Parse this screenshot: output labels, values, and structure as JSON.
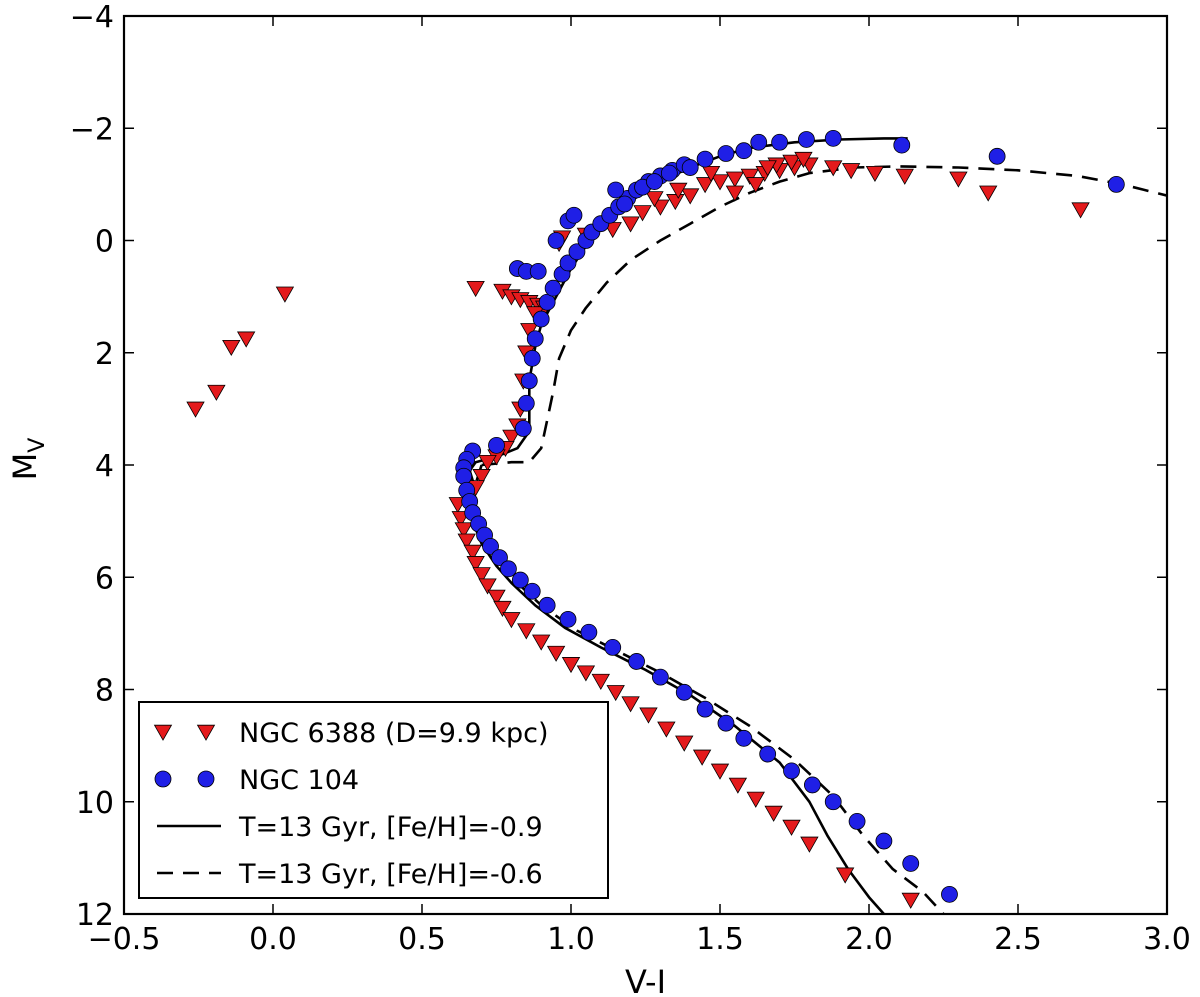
{
  "chart_data": {
    "type": "scatter",
    "title": "",
    "xlabel": "V-I",
    "ylabel_main": "M",
    "ylabel_sub": "V",
    "xlim": [
      -0.5,
      3.0
    ],
    "ylim": [
      12,
      -4
    ],
    "y_inverted": true,
    "xticks": [
      -0.5,
      0.0,
      0.5,
      1.0,
      1.5,
      2.0,
      2.5,
      3.0
    ],
    "xtick_labels": [
      "−0.5",
      "0.0",
      "0.5",
      "1.0",
      "1.5",
      "2.0",
      "2.5",
      "3.0"
    ],
    "yticks": [
      -4,
      -2,
      0,
      2,
      4,
      6,
      8,
      10,
      12
    ],
    "ytick_labels": [
      "−4",
      "−2",
      "0",
      "2",
      "4",
      "6",
      "8",
      "10",
      "12"
    ],
    "grid": false,
    "legend_position": "bottom-left",
    "series": [
      {
        "name": "NGC 6388 (D=9.9 kpc)",
        "kind": "scatter",
        "marker": "triangle-down",
        "color": "#e41a1c",
        "points": [
          [
            -0.26,
            3.0
          ],
          [
            -0.19,
            2.7
          ],
          [
            -0.14,
            1.9
          ],
          [
            -0.09,
            1.75
          ],
          [
            0.04,
            0.95
          ],
          [
            0.68,
            0.85
          ],
          [
            0.77,
            0.9
          ],
          [
            0.8,
            1.0
          ],
          [
            0.83,
            1.05
          ],
          [
            0.86,
            1.1
          ],
          [
            0.89,
            1.15
          ],
          [
            0.91,
            1.2
          ],
          [
            0.88,
            1.3
          ],
          [
            0.86,
            1.6
          ],
          [
            0.85,
            2.0
          ],
          [
            0.84,
            2.5
          ],
          [
            0.83,
            3.0
          ],
          [
            0.82,
            3.3
          ],
          [
            0.8,
            3.5
          ],
          [
            0.78,
            3.7
          ],
          [
            0.75,
            3.85
          ],
          [
            0.72,
            3.95
          ],
          [
            0.7,
            4.2
          ],
          [
            0.68,
            4.4
          ],
          [
            0.62,
            4.7
          ],
          [
            0.63,
            4.95
          ],
          [
            0.64,
            5.15
          ],
          [
            0.65,
            5.35
          ],
          [
            0.67,
            5.55
          ],
          [
            0.68,
            5.75
          ],
          [
            0.7,
            5.95
          ],
          [
            0.72,
            6.15
          ],
          [
            0.75,
            6.35
          ],
          [
            0.77,
            6.55
          ],
          [
            0.8,
            6.75
          ],
          [
            0.85,
            6.95
          ],
          [
            0.9,
            7.15
          ],
          [
            0.95,
            7.35
          ],
          [
            1.0,
            7.55
          ],
          [
            1.05,
            7.7
          ],
          [
            1.1,
            7.85
          ],
          [
            1.15,
            8.05
          ],
          [
            1.2,
            8.25
          ],
          [
            1.26,
            8.45
          ],
          [
            1.32,
            8.7
          ],
          [
            1.38,
            8.95
          ],
          [
            1.44,
            9.2
          ],
          [
            1.5,
            9.45
          ],
          [
            1.56,
            9.7
          ],
          [
            1.62,
            9.95
          ],
          [
            1.68,
            10.2
          ],
          [
            1.74,
            10.45
          ],
          [
            1.8,
            10.75
          ],
          [
            1.92,
            11.3
          ],
          [
            2.14,
            11.75
          ],
          [
            0.96,
            0.05
          ],
          [
            0.97,
            -0.05
          ],
          [
            1.05,
            -0.1
          ],
          [
            1.14,
            -0.2
          ],
          [
            1.2,
            -0.3
          ],
          [
            1.24,
            -0.5
          ],
          [
            1.3,
            -0.6
          ],
          [
            1.35,
            -0.7
          ],
          [
            1.4,
            -0.8
          ],
          [
            1.45,
            -1.0
          ],
          [
            1.5,
            -1.05
          ],
          [
            1.55,
            -1.1
          ],
          [
            1.6,
            -1.15
          ],
          [
            1.65,
            -1.2
          ],
          [
            1.7,
            -1.25
          ],
          [
            1.75,
            -1.3
          ],
          [
            1.8,
            -1.35
          ],
          [
            1.88,
            -1.3
          ],
          [
            1.94,
            -1.25
          ],
          [
            2.02,
            -1.2
          ],
          [
            2.12,
            -1.15
          ],
          [
            2.3,
            -1.1
          ],
          [
            2.4,
            -0.85
          ],
          [
            2.71,
            -0.55
          ],
          [
            1.55,
            -0.85
          ],
          [
            1.62,
            -1.0
          ],
          [
            1.69,
            -1.35
          ],
          [
            1.74,
            -1.4
          ],
          [
            1.78,
            -1.45
          ],
          [
            1.66,
            -1.3
          ],
          [
            1.47,
            -1.2
          ],
          [
            1.36,
            -0.9
          ],
          [
            1.28,
            -0.75
          ]
        ]
      },
      {
        "name": "NGC 104",
        "kind": "scatter",
        "marker": "circle",
        "color": "#1f1fe6",
        "points": [
          [
            0.67,
            3.75
          ],
          [
            0.65,
            3.9
          ],
          [
            0.64,
            4.05
          ],
          [
            0.64,
            4.2
          ],
          [
            0.65,
            4.45
          ],
          [
            0.66,
            4.65
          ],
          [
            0.67,
            4.85
          ],
          [
            0.69,
            5.05
          ],
          [
            0.71,
            5.25
          ],
          [
            0.73,
            5.45
          ],
          [
            0.76,
            5.65
          ],
          [
            0.79,
            5.85
          ],
          [
            0.83,
            6.05
          ],
          [
            0.87,
            6.25
          ],
          [
            0.92,
            6.5
          ],
          [
            0.99,
            6.75
          ],
          [
            1.06,
            6.98
          ],
          [
            1.14,
            7.25
          ],
          [
            1.22,
            7.5
          ],
          [
            1.3,
            7.78
          ],
          [
            1.38,
            8.05
          ],
          [
            1.45,
            8.35
          ],
          [
            1.52,
            8.6
          ],
          [
            1.58,
            8.87
          ],
          [
            1.66,
            9.15
          ],
          [
            1.74,
            9.45
          ],
          [
            1.81,
            9.7
          ],
          [
            1.88,
            10.0
          ],
          [
            1.96,
            10.35
          ],
          [
            2.05,
            10.7
          ],
          [
            2.14,
            11.1
          ],
          [
            2.27,
            11.65
          ],
          [
            0.75,
            3.65
          ],
          [
            0.84,
            3.35
          ],
          [
            0.85,
            2.9
          ],
          [
            0.86,
            2.5
          ],
          [
            0.87,
            2.1
          ],
          [
            0.88,
            1.75
          ],
          [
            0.9,
            1.4
          ],
          [
            0.92,
            1.1
          ],
          [
            0.94,
            0.85
          ],
          [
            0.97,
            0.6
          ],
          [
            0.99,
            0.4
          ],
          [
            1.02,
            0.2
          ],
          [
            1.05,
            0.0
          ],
          [
            1.07,
            -0.15
          ],
          [
            1.1,
            -0.3
          ],
          [
            1.13,
            -0.45
          ],
          [
            1.16,
            -0.6
          ],
          [
            1.19,
            -0.75
          ],
          [
            1.22,
            -0.9
          ],
          [
            1.26,
            -1.05
          ],
          [
            1.3,
            -1.15
          ],
          [
            1.34,
            -1.25
          ],
          [
            1.38,
            -1.35
          ],
          [
            1.45,
            -1.45
          ],
          [
            1.52,
            -1.55
          ],
          [
            1.58,
            -1.6
          ],
          [
            1.63,
            -1.75
          ],
          [
            1.7,
            -1.75
          ],
          [
            1.79,
            -1.8
          ],
          [
            1.88,
            -1.82
          ],
          [
            2.11,
            -1.7
          ],
          [
            2.43,
            -1.5
          ],
          [
            2.83,
            -1.0
          ],
          [
            0.82,
            0.5
          ],
          [
            0.85,
            0.55
          ],
          [
            0.89,
            0.55
          ],
          [
            0.95,
            0.0
          ],
          [
            0.99,
            -0.35
          ],
          [
            1.01,
            -0.45
          ],
          [
            1.15,
            -0.9
          ],
          [
            1.18,
            -0.65
          ],
          [
            1.24,
            -0.95
          ],
          [
            1.28,
            -1.05
          ],
          [
            1.33,
            -1.2
          ],
          [
            1.4,
            -1.3
          ]
        ]
      },
      {
        "name": "T=13 Gyr, [Fe/H]=-0.9",
        "kind": "line",
        "style": "solid",
        "color": "#000000",
        "points": [
          [
            0.68,
            4.45
          ],
          [
            0.66,
            4.1
          ],
          [
            0.68,
            3.95
          ],
          [
            0.75,
            3.85
          ],
          [
            0.82,
            3.7
          ],
          [
            0.86,
            3.4
          ],
          [
            0.86,
            3.0
          ],
          [
            0.86,
            2.5
          ],
          [
            0.88,
            1.9
          ],
          [
            0.9,
            1.5
          ],
          [
            0.95,
            1.0
          ],
          [
            1.0,
            0.5
          ],
          [
            1.05,
            0.1
          ],
          [
            1.1,
            -0.25
          ],
          [
            1.2,
            -0.7
          ],
          [
            1.3,
            -1.05
          ],
          [
            1.4,
            -1.3
          ],
          [
            1.5,
            -1.5
          ],
          [
            1.6,
            -1.65
          ],
          [
            1.75,
            -1.75
          ],
          [
            1.9,
            -1.8
          ],
          [
            2.05,
            -1.82
          ],
          [
            2.13,
            -1.82
          ]
        ]
      },
      {
        "name": "T=13 Gyr, [Fe/H]=-0.9 (lower MS)",
        "kind": "line",
        "style": "solid",
        "color": "#000000",
        "points": [
          [
            0.66,
            4.1
          ],
          [
            0.65,
            4.5
          ],
          [
            0.67,
            5.0
          ],
          [
            0.7,
            5.4
          ],
          [
            0.75,
            5.8
          ],
          [
            0.8,
            6.1
          ],
          [
            0.88,
            6.5
          ],
          [
            0.98,
            6.9
          ],
          [
            1.1,
            7.25
          ],
          [
            1.25,
            7.65
          ],
          [
            1.4,
            8.1
          ],
          [
            1.55,
            8.65
          ],
          [
            1.7,
            9.3
          ],
          [
            1.8,
            10.0
          ],
          [
            1.86,
            10.6
          ],
          [
            1.93,
            11.2
          ],
          [
            2.0,
            11.7
          ],
          [
            2.05,
            12.0
          ]
        ]
      },
      {
        "name": "T=13 Gyr, [Fe/H]=-0.6",
        "kind": "line",
        "style": "dashed",
        "color": "#000000",
        "points": [
          [
            0.7,
            4.0
          ],
          [
            0.8,
            3.95
          ],
          [
            0.86,
            3.95
          ],
          [
            0.9,
            3.7
          ],
          [
            0.92,
            3.2
          ],
          [
            0.94,
            2.7
          ],
          [
            0.96,
            2.1
          ],
          [
            1.0,
            1.6
          ],
          [
            1.05,
            1.2
          ],
          [
            1.12,
            0.75
          ],
          [
            1.2,
            0.35
          ],
          [
            1.3,
            0.0
          ],
          [
            1.4,
            -0.3
          ],
          [
            1.5,
            -0.6
          ],
          [
            1.6,
            -0.85
          ],
          [
            1.7,
            -1.05
          ],
          [
            1.8,
            -1.2
          ],
          [
            1.95,
            -1.3
          ],
          [
            2.1,
            -1.32
          ],
          [
            2.3,
            -1.3
          ],
          [
            2.5,
            -1.25
          ],
          [
            2.7,
            -1.15
          ],
          [
            2.85,
            -1.0
          ],
          [
            3.0,
            -0.8
          ]
        ]
      },
      {
        "name": "T=13 Gyr, [Fe/H]=-0.6 (lower MS)",
        "kind": "line",
        "style": "dashed",
        "color": "#000000",
        "points": [
          [
            0.7,
            4.0
          ],
          [
            0.67,
            4.5
          ],
          [
            0.69,
            5.0
          ],
          [
            0.73,
            5.5
          ],
          [
            0.8,
            6.0
          ],
          [
            0.9,
            6.5
          ],
          [
            1.02,
            6.95
          ],
          [
            1.15,
            7.3
          ],
          [
            1.3,
            7.7
          ],
          [
            1.45,
            8.15
          ],
          [
            1.6,
            8.65
          ],
          [
            1.75,
            9.25
          ],
          [
            1.88,
            9.9
          ],
          [
            1.98,
            10.6
          ],
          [
            2.08,
            11.2
          ],
          [
            2.18,
            11.6
          ],
          [
            2.25,
            12.0
          ]
        ]
      }
    ],
    "legend": [
      {
        "label": "NGC 6388 (D=9.9 kpc)",
        "kind": "triangle-down",
        "color": "#e41a1c"
      },
      {
        "label": "NGC 104",
        "kind": "circle",
        "color": "#1f1fe6"
      },
      {
        "label": "T=13 Gyr, [Fe/H]=-0.9",
        "kind": "solid",
        "color": "#000000"
      },
      {
        "label": "T=13 Gyr, [Fe/H]=-0.6",
        "kind": "dashed",
        "color": "#000000"
      }
    ]
  }
}
